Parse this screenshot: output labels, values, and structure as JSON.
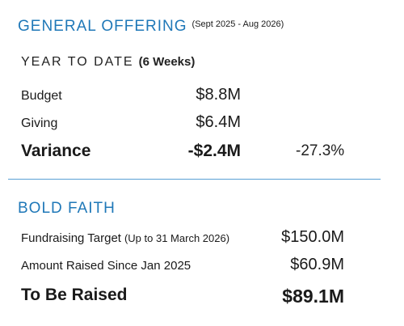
{
  "general_offering": {
    "title": "GENERAL OFFERING",
    "period": "(Sept 2025 - Aug 2026)",
    "ytd_label": "YEAR TO DATE",
    "ytd_weeks": "(6 Weeks)",
    "rows": [
      {
        "label": "Budget",
        "value": "$8.8M"
      },
      {
        "label": "Giving",
        "value": "$6.4M"
      }
    ],
    "variance": {
      "label": "Variance",
      "value": "-$2.4M",
      "percent": "-27.3%"
    }
  },
  "bold_faith": {
    "title": "BOLD FAITH",
    "rows": [
      {
        "label": "Fundraising Target",
        "note": "(Up to 31 March 2026)",
        "value": "$150.0M"
      },
      {
        "label": "Amount Raised Since Jan 2025",
        "value": "$60.9M"
      }
    ],
    "total": {
      "label": "To Be Raised",
      "value": "$89.1M"
    }
  },
  "colors": {
    "accent": "#1f78b8",
    "divider": "#5aa0d4",
    "text": "#1a1a1a"
  }
}
